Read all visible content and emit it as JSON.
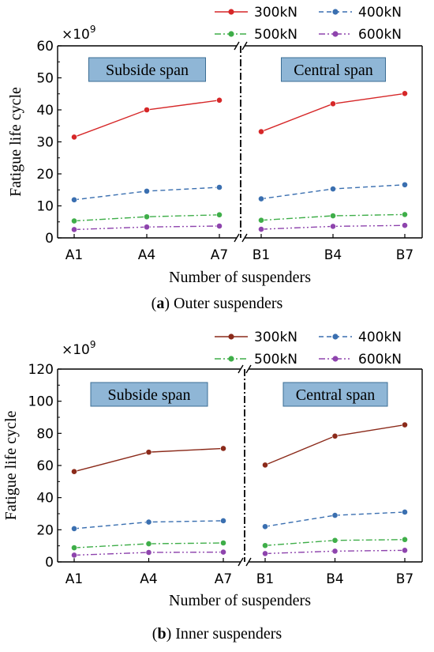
{
  "chart_data": [
    {
      "type": "line",
      "caption": {
        "letter": "a",
        "text": " Outer suspenders"
      },
      "multiplier": {
        "base": "×10",
        "exp": "9"
      },
      "xlabel": "Number of suspenders",
      "ylabel": "Fatigue life cycle",
      "ylim": [
        0,
        60
      ],
      "yticks": [
        "0",
        "10",
        "20",
        "30",
        "40",
        "50",
        "60"
      ],
      "grid": false,
      "legend_position": "top-right",
      "groups": [
        {
          "label": "Subside span",
          "categories": [
            "A1",
            "A4",
            "A7"
          ]
        },
        {
          "label": "Central span",
          "categories": [
            "B1",
            "B4",
            "B7"
          ]
        }
      ],
      "series": [
        {
          "name": "300kN",
          "color": "#d62728",
          "dash": "solid",
          "values": [
            [
              31.5,
              40.0,
              43.0
            ],
            [
              33.2,
              41.9,
              45.1
            ]
          ]
        },
        {
          "name": "400kN",
          "color": "#3a6fb0",
          "dash": "dashed",
          "values": [
            [
              11.9,
              14.6,
              15.8
            ],
            [
              12.2,
              15.3,
              16.6
            ]
          ]
        },
        {
          "name": "500kN",
          "color": "#3fae49",
          "dash": "dashdot",
          "values": [
            [
              5.3,
              6.6,
              7.2
            ],
            [
              5.5,
              6.9,
              7.3
            ]
          ]
        },
        {
          "name": "600kN",
          "color": "#8e44ad",
          "dash": "dashdotdot",
          "values": [
            [
              2.6,
              3.4,
              3.7
            ],
            [
              2.7,
              3.6,
              3.9
            ]
          ]
        }
      ]
    },
    {
      "type": "line",
      "caption": {
        "letter": "b",
        "text": " Inner suspenders"
      },
      "multiplier": {
        "base": "×10",
        "exp": "9"
      },
      "xlabel": "Number of suspenders",
      "ylabel": "Fatigue life cycle",
      "ylim": [
        0,
        120
      ],
      "yticks": [
        "0",
        "20",
        "40",
        "60",
        "80",
        "100",
        "120"
      ],
      "grid": false,
      "legend_position": "top-right",
      "groups": [
        {
          "label": "Subside span",
          "categories": [
            "A1",
            "A4",
            "A7"
          ]
        },
        {
          "label": "Central span",
          "categories": [
            "B1",
            "B4",
            "B7"
          ]
        }
      ],
      "series": [
        {
          "name": "300kN",
          "color": "#8b2a1a",
          "dash": "solid",
          "values": [
            [
              56.2,
              68.3,
              70.6
            ],
            [
              60.3,
              78.3,
              85.3
            ]
          ]
        },
        {
          "name": "400kN",
          "color": "#3a6fb0",
          "dash": "dashed",
          "values": [
            [
              20.7,
              24.8,
              25.6
            ],
            [
              22.0,
              29.0,
              31.0
            ]
          ]
        },
        {
          "name": "500kN",
          "color": "#3fae49",
          "dash": "dashdot",
          "values": [
            [
              8.8,
              11.3,
              11.8
            ],
            [
              10.2,
              13.4,
              13.9
            ]
          ]
        },
        {
          "name": "600kN",
          "color": "#8e44ad",
          "dash": "dashdotdot",
          "values": [
            [
              4.2,
              5.9,
              6.1
            ],
            [
              5.2,
              6.7,
              7.2
            ]
          ]
        }
      ]
    }
  ]
}
